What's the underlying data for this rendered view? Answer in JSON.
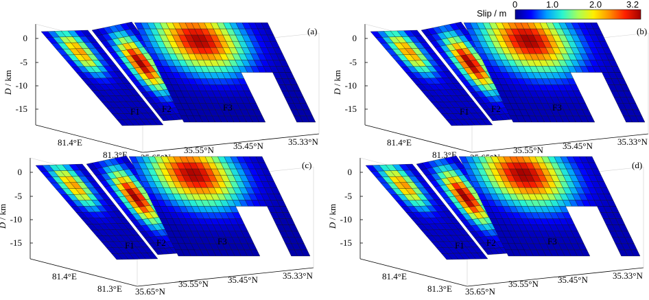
{
  "colorbar": {
    "title": "Slip / m",
    "ticks": [
      "0",
      "1.0",
      "2.0",
      "3.2"
    ],
    "stops": [
      "#00008f",
      "#0000ff",
      "#00a0ff",
      "#2af5d0",
      "#a6ff5a",
      "#ffee00",
      "#ff9000",
      "#ff2000",
      "#a00000"
    ]
  },
  "depth_label_italic": "D",
  "depth_label_rest": " / km",
  "depth_ticks": [
    "0",
    "-5",
    "-10",
    "-15"
  ],
  "lon_ticks": [
    "81.4°E",
    "81.3°E"
  ],
  "lat_ticks": [
    "35.65°N",
    "35.55°N",
    "35.45°N",
    "35.33°N"
  ],
  "faults": [
    "F1",
    "F2",
    "F3"
  ],
  "panels": [
    {
      "label": "(a)"
    },
    {
      "label": "(b)"
    },
    {
      "label": "(c)"
    },
    {
      "label": "(d)"
    }
  ]
}
